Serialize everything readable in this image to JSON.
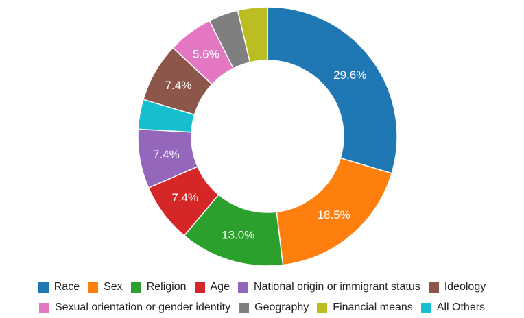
{
  "chart_data": {
    "type": "pie",
    "donut": true,
    "categories": [
      "Race",
      "Sex",
      "Religion",
      "Age",
      "National origin or immigrant status",
      "Ideology",
      "Sexual orientation or gender identity",
      "Geography",
      "Financial means",
      "All Others"
    ],
    "values": [
      29.6,
      18.5,
      13.0,
      7.4,
      7.4,
      7.4,
      5.6,
      3.7,
      3.7,
      3.7
    ],
    "slice_order": [
      0,
      1,
      2,
      3,
      4,
      9,
      5,
      6,
      7,
      8
    ],
    "value_labels": [
      "29.6%",
      "18.5%",
      "13.0%",
      "7.4%",
      "7.4%",
      "7.4%",
      "5.6%",
      "",
      "",
      ""
    ],
    "colors": [
      "#1f77b4",
      "#ff7f0e",
      "#2ca02c",
      "#d62728",
      "#9467bd",
      "#8c564b",
      "#e377c2",
      "#7f7f7f",
      "#bcbd22",
      "#17becf"
    ],
    "legend_position": "bottom",
    "legend_rows": [
      [
        0,
        1,
        2,
        3,
        4,
        5
      ],
      [
        6,
        7,
        8,
        9
      ]
    ],
    "title": ""
  }
}
